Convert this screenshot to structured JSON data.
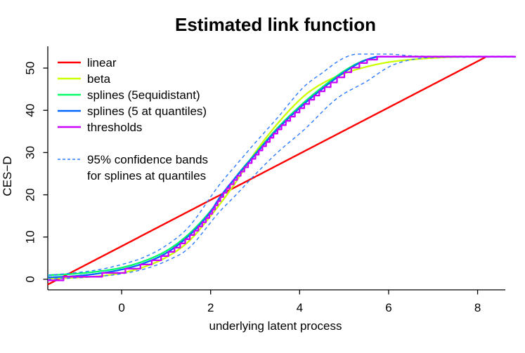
{
  "chart_data": {
    "type": "line",
    "title": "Estimated link function",
    "xlabel": "underlying latent process",
    "ylabel": "CES−D",
    "x_ticks": [
      0,
      2,
      4,
      6,
      8
    ],
    "y_ticks": [
      0,
      10,
      20,
      30,
      40,
      50
    ],
    "x_range": [
      -1.66,
      8.86
    ],
    "y_range": [
      -2.5,
      55.2
    ],
    "grid": false,
    "axis_color": "#000000",
    "outcome_max": 52.7,
    "legend_position": "top-left-inside",
    "legend": {
      "entries": [
        {
          "label": "linear",
          "color": "#FF0000",
          "style": "solid"
        },
        {
          "label": "beta",
          "color": "#CCFF00",
          "style": "solid"
        },
        {
          "label": "splines (5equidistant)",
          "color": "#00FF66",
          "style": "solid"
        },
        {
          "label": "splines (5 at quantiles)",
          "color": "#0066FF",
          "style": "solid"
        },
        {
          "label": "thresholds",
          "color": "#CC00FF",
          "style": "solid"
        }
      ],
      "ci_line1": "95% confidence bands",
      "ci_line2": "for splines at quantiles",
      "ci_color": "#2B7BFF",
      "ci_style": "dashed"
    },
    "series": [
      {
        "name": "linear",
        "color": "#FF0000",
        "style": "solid",
        "width": 2.4,
        "points": [
          [
            -1.66,
            -1.25
          ],
          [
            8.18,
            52.6
          ]
        ]
      },
      {
        "name": "beta",
        "color": "#CCFF00",
        "style": "solid",
        "width": 2.3,
        "points": [
          [
            -1.66,
            0.15
          ],
          [
            -1.0,
            0.4
          ],
          [
            -0.5,
            0.75
          ],
          [
            0,
            1.5
          ],
          [
            0.5,
            2.9
          ],
          [
            1,
            5.2
          ],
          [
            1.5,
            8.9
          ],
          [
            2,
            15.0
          ],
          [
            2.5,
            22.0
          ],
          [
            3,
            30.0
          ],
          [
            3.5,
            36.8
          ],
          [
            4.1,
            43.4
          ],
          [
            4.5,
            46.3
          ],
          [
            5,
            48.7
          ],
          [
            5.5,
            50.3
          ],
          [
            6,
            51.4
          ],
          [
            6.5,
            52.0
          ],
          [
            7,
            52.4
          ],
          [
            7.6,
            52.65
          ],
          [
            8.86,
            52.7
          ]
        ]
      },
      {
        "name": "splines (5equidistant)",
        "color": "#00FF66",
        "style": "solid",
        "width": 2.3,
        "points": [
          [
            -1.66,
            0.95
          ],
          [
            -1.0,
            1.35
          ],
          [
            -0.5,
            1.9
          ],
          [
            0,
            2.75
          ],
          [
            0.5,
            4.3
          ],
          [
            1,
            6.7
          ],
          [
            1.5,
            10.6
          ],
          [
            2,
            16.2
          ],
          [
            2.6,
            24.7
          ],
          [
            3,
            29.7
          ],
          [
            3.5,
            35.8
          ],
          [
            4.1,
            41.9
          ],
          [
            4.5,
            45.4
          ],
          [
            5,
            49.3
          ],
          [
            5.4,
            51.6
          ],
          [
            5.65,
            52.4
          ],
          [
            5.8,
            52.7
          ],
          [
            8.86,
            52.7
          ]
        ]
      },
      {
        "name": "splines (5 at quantiles)",
        "color": "#0066FF",
        "style": "solid",
        "width": 2.3,
        "points": [
          [
            -1.66,
            0.45
          ],
          [
            -1.3,
            0.6
          ],
          [
            -1.0,
            0.8
          ],
          [
            -0.5,
            1.4
          ],
          [
            0,
            2.3
          ],
          [
            0.5,
            3.8
          ],
          [
            1,
            6.2
          ],
          [
            1.5,
            10.2
          ],
          [
            2,
            16.0
          ],
          [
            2.2,
            19.3
          ],
          [
            2.6,
            24.6
          ],
          [
            3,
            29.5
          ],
          [
            3.5,
            35.5
          ],
          [
            4.1,
            41.5
          ],
          [
            4.5,
            45.0
          ],
          [
            5,
            49.0
          ],
          [
            5.4,
            51.5
          ],
          [
            5.6,
            52.3
          ],
          [
            5.75,
            52.7
          ],
          [
            8.86,
            52.7
          ]
        ]
      },
      {
        "name": "ci upper 95%",
        "color": "#2B7BFF",
        "style": "dashed",
        "width": 1.4,
        "points": [
          [
            -1.66,
            0.95
          ],
          [
            -1.0,
            1.6
          ],
          [
            -0.5,
            2.3
          ],
          [
            0,
            3.5
          ],
          [
            0.5,
            5.2
          ],
          [
            1,
            8.0
          ],
          [
            1.5,
            12.3
          ],
          [
            2.2,
            22.4
          ],
          [
            2.6,
            27.4
          ],
          [
            3,
            32.3
          ],
          [
            3.5,
            38.2
          ],
          [
            4.1,
            45.6
          ],
          [
            4.5,
            48.8
          ],
          [
            4.96,
            52.2
          ],
          [
            5.3,
            53.3
          ],
          [
            6,
            53.3
          ],
          [
            6.5,
            52.9
          ],
          [
            7,
            52.8
          ],
          [
            8.86,
            52.8
          ]
        ]
      },
      {
        "name": "ci lower 95%",
        "color": "#2B7BFF",
        "style": "dashed",
        "width": 1.4,
        "points": [
          [
            -1.66,
            0.02
          ],
          [
            -1.0,
            0.35
          ],
          [
            -0.5,
            0.7
          ],
          [
            0,
            1.3
          ],
          [
            0.5,
            2.4
          ],
          [
            1,
            4.3
          ],
          [
            1.5,
            7.3
          ],
          [
            2.2,
            16.0
          ],
          [
            2.6,
            20.3
          ],
          [
            3,
            24.8
          ],
          [
            3.5,
            30.0
          ],
          [
            4.1,
            35.4
          ],
          [
            4.85,
            42.9
          ],
          [
            5.48,
            46.7
          ],
          [
            6.07,
            50.6
          ],
          [
            6.7,
            52.3
          ],
          [
            7.2,
            52.55
          ],
          [
            8.86,
            52.6
          ]
        ]
      },
      {
        "name": "thresholds",
        "color": "#CC00FF",
        "style": "step",
        "width": 2.3,
        "derived_from": "splines (5 at quantiles)",
        "levels": [
          -0.25,
          0.6,
          1.5,
          2.5,
          3.5,
          4.5,
          5.5,
          6.5,
          7.5,
          8.5,
          9.5,
          10.5,
          11.5,
          12.5,
          13.5,
          14.5,
          15.5,
          16.5,
          17.5,
          18.5,
          19.5,
          20.5,
          21.5,
          22.5,
          23.5,
          24.5,
          25.5,
          26.5,
          27.5,
          28.5,
          29.5,
          30.5,
          31.5,
          32.5,
          33.5,
          34.5,
          35.5,
          36.5,
          37.5,
          38.5,
          39.5,
          40.5,
          41.5,
          42.5,
          43.5,
          44.5,
          45.5,
          46.6,
          47.8,
          49.0,
          50.1,
          51.2,
          52.0,
          52.7
        ]
      }
    ]
  }
}
